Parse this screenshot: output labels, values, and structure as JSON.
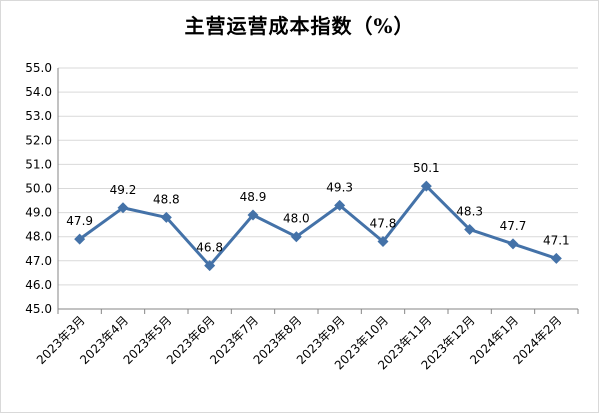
{
  "chart_data": {
    "type": "line",
    "title": "主营运营成本指数（%）",
    "categories": [
      "2023年3月",
      "2023年4月",
      "2023年5月",
      "2023年6月",
      "2023年7月",
      "2023年8月",
      "2023年9月",
      "2023年10月",
      "2023年11月",
      "2023年12月",
      "2024年1月",
      "2024年2月"
    ],
    "values": [
      47.9,
      49.2,
      48.8,
      46.8,
      48.9,
      48.0,
      49.3,
      47.8,
      50.1,
      48.3,
      47.7,
      47.1
    ],
    "value_labels": [
      "47.9",
      "49.2",
      "48.8",
      "46.8",
      "48.9",
      "48.0",
      "49.3",
      "47.8",
      "50.1",
      "48.3",
      "47.7",
      "47.1"
    ],
    "ylim": [
      45.0,
      55.0
    ],
    "yticks": [
      "45.0",
      "46.0",
      "47.0",
      "48.0",
      "49.0",
      "50.0",
      "51.0",
      "52.0",
      "53.0",
      "54.0",
      "55.0"
    ],
    "ytick_values": [
      45,
      46,
      47,
      48,
      49,
      50,
      51,
      52,
      53,
      54,
      55
    ],
    "xlabel": "",
    "ylabel": "",
    "grid": true,
    "line_color": "#4472a8"
  }
}
